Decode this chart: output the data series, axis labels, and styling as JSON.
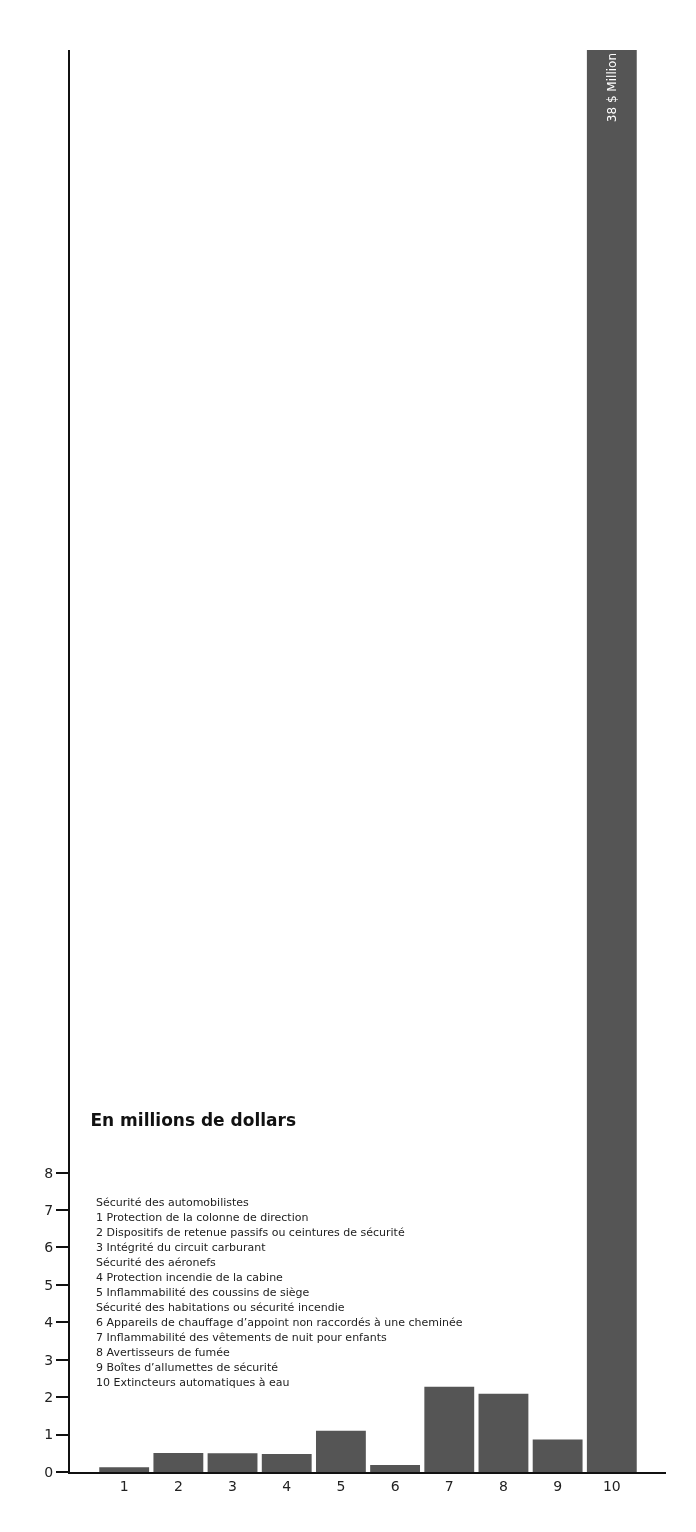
{
  "chart_data": {
    "type": "bar",
    "title": "En millions de dollars",
    "categories": [
      "1",
      "2",
      "3",
      "4",
      "5",
      "6",
      "7",
      "8",
      "9",
      "10"
    ],
    "values": [
      0.13,
      0.51,
      0.5,
      0.48,
      1.1,
      0.19,
      2.28,
      2.09,
      0.87,
      38
    ],
    "value_labels": [
      null,
      null,
      null,
      null,
      null,
      null,
      null,
      null,
      null,
      "38 $ Million"
    ],
    "color": "#555555",
    "ylim": [
      0,
      38
    ],
    "yticks": [
      0,
      1,
      2,
      3,
      4,
      5,
      6,
      7,
      8
    ],
    "grid": false,
    "legend": false,
    "annotations": [
      "Sécurité des automobilistes",
      "1 Protection de la colonne de direction",
      "2 Dispositifs de retenue passifs ou ceintures de sécurité",
      "3 Intégrité du circuit carburant",
      "Sécurité des aéronefs",
      "4 Protection incendie de la cabine",
      "5 Inflammabilité des coussins de siège",
      "Sécurité des habitations ou sécurité incendie",
      "6 Appareils de chauffage d’appoint non raccordés à une cheminée",
      "7 Inflammabilité des vêtements de nuit pour enfants",
      "8 Avertisseurs de fumée",
      "9 Boîtes d’allumettes de sécurité",
      "10 Extincteurs automatiques à eau"
    ]
  }
}
